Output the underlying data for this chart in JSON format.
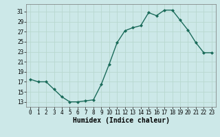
{
  "x": [
    0,
    1,
    2,
    3,
    4,
    5,
    6,
    7,
    8,
    9,
    10,
    11,
    12,
    13,
    14,
    15,
    16,
    17,
    18,
    19,
    20,
    21,
    22,
    23
  ],
  "y": [
    17.5,
    17.0,
    17.0,
    15.5,
    14.0,
    13.0,
    13.0,
    13.2,
    13.4,
    16.5,
    20.5,
    24.8,
    27.2,
    27.8,
    28.2,
    30.8,
    30.2,
    31.3,
    31.3,
    29.3,
    27.3,
    24.8,
    22.8,
    22.8
  ],
  "line_color": "#1a6b5a",
  "marker": "D",
  "markersize": 2.0,
  "linewidth": 1.0,
  "bg_color": "#cce8e8",
  "grid_color": "#b8d8d0",
  "xlabel": "Humidex (Indice chaleur)",
  "xlabel_fontsize": 7,
  "yticks": [
    13,
    15,
    17,
    19,
    21,
    23,
    25,
    27,
    29,
    31
  ],
  "xtick_labels": [
    "0",
    "1",
    "2",
    "3",
    "4",
    "5",
    "6",
    "7",
    "8",
    "9",
    "10",
    "11",
    "12",
    "13",
    "14",
    "15",
    "16",
    "17",
    "18",
    "19",
    "20",
    "21",
    "22",
    "23"
  ],
  "xlim": [
    -0.5,
    23.5
  ],
  "ylim": [
    12.0,
    32.5
  ],
  "tick_fontsize": 5.5,
  "font_family": "monospace"
}
